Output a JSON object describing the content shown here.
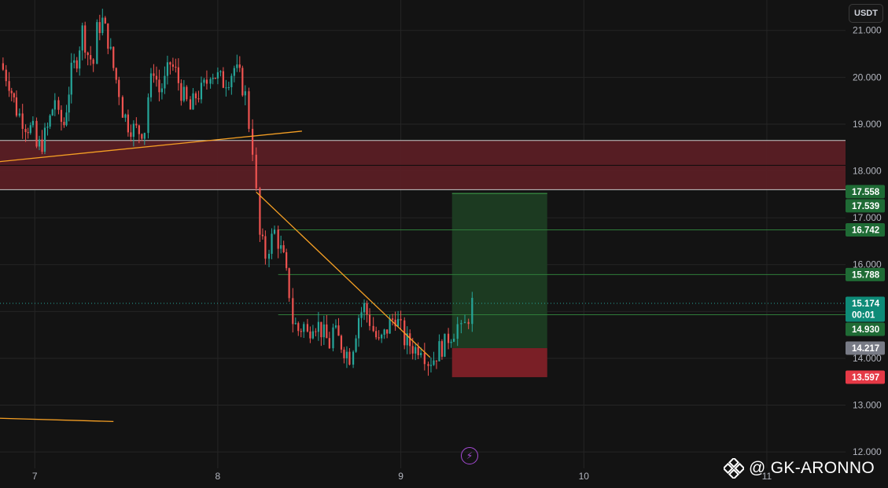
{
  "header": {
    "currency_label": "USDT"
  },
  "watermark": {
    "text": "@ GK-ARONNO",
    "logo_icon": "binance-diamond-icon"
  },
  "footer": {
    "lightning_icon": "lightning-bolt-icon"
  },
  "colors": {
    "background": "#131313",
    "grid": "#252525",
    "bull": "#26a69a",
    "bear": "#ef5350",
    "trendline": "#f59f24",
    "zone": "#5a1e24",
    "target_zone": "#1c3a21",
    "stop_zone": "#7a1f26",
    "target_line": "#3fa34d"
  },
  "chart_data": {
    "type": "candlestick",
    "y_axis": {
      "ylim": [
        11.65,
        21.65
      ],
      "ticks": [
        "12.000",
        "13.000",
        "14.000",
        "15.000",
        "16.000",
        "17.000",
        "18.000",
        "19.000",
        "20.000",
        "21.000"
      ],
      "tick_values": [
        12,
        13,
        14,
        15,
        16,
        17,
        18,
        19,
        20,
        21
      ]
    },
    "x_axis": {
      "xlim": [
        6.81,
        11.43
      ],
      "ticks": [
        "7",
        "8",
        "9",
        "10",
        "11"
      ],
      "tick_values": [
        7,
        8,
        9,
        10,
        11
      ]
    },
    "price_labels": [
      {
        "value": "17.558",
        "price": 17.558,
        "color": "#1f6b35"
      },
      {
        "value": "17.539",
        "price": 17.539,
        "color": "#1f6b35"
      },
      {
        "value": "16.742",
        "price": 16.742,
        "color": "#1f6b35"
      },
      {
        "value": "15.788",
        "price": 15.788,
        "color": "#1f6b35"
      },
      {
        "value": "15.174",
        "sub": "00:01",
        "price": 15.174,
        "color": "#0e8b78"
      },
      {
        "value": "14.930",
        "price": 14.93,
        "color": "#1f6b35"
      },
      {
        "value": "14.217",
        "price": 14.217,
        "color": "#787b86"
      },
      {
        "value": "13.597",
        "price": 13.597,
        "color": "#e53946"
      }
    ],
    "resistance_zone": {
      "top": 18.65,
      "mid": 18.12,
      "bottom": 17.6,
      "x_end": 11.43
    },
    "position": {
      "x_start": 9.28,
      "x_end": 9.8,
      "target": 17.52,
      "entry": 14.217,
      "stop": 13.597
    },
    "horizontal_lines": [
      {
        "price": 16.742,
        "x_start": 8.33,
        "color": "#2f7d3a"
      },
      {
        "price": 15.788,
        "x_start": 8.33,
        "color": "#2f7d3a"
      },
      {
        "price": 14.93,
        "x_start": 8.33,
        "color": "#2f7d3a"
      }
    ],
    "current_price_line": {
      "price": 15.174,
      "color": "#26a69a"
    },
    "trendlines": [
      {
        "x1": 6.81,
        "y1": 18.2,
        "x2": 8.46,
        "y2": 18.85
      },
      {
        "x1": 8.21,
        "y1": 17.55,
        "x2": 9.16,
        "y2": 14.02
      },
      {
        "x1": 6.81,
        "y1": 12.72,
        "x2": 7.43,
        "y2": 12.65
      }
    ],
    "candle_path": [
      [
        6.81,
        20.3
      ],
      [
        6.86,
        19.9
      ],
      [
        6.9,
        19.3
      ],
      [
        6.95,
        19.0
      ],
      [
        6.99,
        18.85
      ],
      [
        7.01,
        18.5
      ],
      [
        7.04,
        18.6
      ],
      [
        7.07,
        18.9
      ],
      [
        7.11,
        19.55
      ],
      [
        7.13,
        19.1
      ],
      [
        7.16,
        19.0
      ],
      [
        7.2,
        20.1
      ],
      [
        7.23,
        20.4
      ],
      [
        7.26,
        21.0
      ],
      [
        7.29,
        20.5
      ],
      [
        7.32,
        20.3
      ],
      [
        7.34,
        21.0
      ],
      [
        7.37,
        21.2
      ],
      [
        7.4,
        20.8
      ],
      [
        7.43,
        20.2
      ],
      [
        7.46,
        19.7
      ],
      [
        7.48,
        19.3
      ],
      [
        7.51,
        19.0
      ],
      [
        7.54,
        18.9
      ],
      [
        7.57,
        18.85
      ],
      [
        7.6,
        18.9
      ],
      [
        7.62,
        19.6
      ],
      [
        7.65,
        20.2
      ],
      [
        7.68,
        19.7
      ],
      [
        7.71,
        19.9
      ],
      [
        7.74,
        20.3
      ],
      [
        7.77,
        20.1
      ],
      [
        7.8,
        19.7
      ],
      [
        7.83,
        19.45
      ],
      [
        7.85,
        19.3
      ],
      [
        7.88,
        19.6
      ],
      [
        7.91,
        19.7
      ],
      [
        7.94,
        19.9
      ],
      [
        7.96,
        20.15
      ],
      [
        8.0,
        20.0
      ],
      [
        8.03,
        19.9
      ],
      [
        8.06,
        20.0
      ],
      [
        8.09,
        20.2
      ],
      [
        8.12,
        20.0
      ],
      [
        8.15,
        19.6
      ],
      [
        8.17,
        19.0
      ],
      [
        8.19,
        18.5
      ],
      [
        8.21,
        17.5
      ],
      [
        8.23,
        16.6
      ],
      [
        8.26,
        16.2
      ],
      [
        8.28,
        16.4
      ],
      [
        8.31,
        16.7
      ],
      [
        8.33,
        16.5
      ],
      [
        8.36,
        16.1
      ],
      [
        8.39,
        15.4
      ],
      [
        8.41,
        14.8
      ],
      [
        8.44,
        14.6
      ],
      [
        8.47,
        14.7
      ],
      [
        8.49,
        14.5
      ],
      [
        8.52,
        14.8
      ],
      [
        8.55,
        14.7
      ],
      [
        8.58,
        14.5
      ],
      [
        8.61,
        14.3
      ],
      [
        8.63,
        14.6
      ],
      [
        8.66,
        14.4
      ],
      [
        8.69,
        14.2
      ],
      [
        8.72,
        14.05
      ],
      [
        8.74,
        14.3
      ],
      [
        8.77,
        14.9
      ],
      [
        8.8,
        15.1
      ],
      [
        8.83,
        14.8
      ],
      [
        8.85,
        14.6
      ],
      [
        8.88,
        14.3
      ],
      [
        8.91,
        14.5
      ],
      [
        8.94,
        14.75
      ],
      [
        8.97,
        14.9
      ],
      [
        9.0,
        14.6
      ],
      [
        9.02,
        14.4
      ],
      [
        9.05,
        14.3
      ],
      [
        9.08,
        14.2
      ],
      [
        9.11,
        14.3
      ],
      [
        9.13,
        14.1
      ],
      [
        9.15,
        13.95
      ],
      [
        9.18,
        14.0
      ],
      [
        9.21,
        14.2
      ],
      [
        9.24,
        14.3
      ],
      [
        9.26,
        14.45
      ],
      [
        9.29,
        14.6
      ],
      [
        9.31,
        14.7
      ],
      [
        9.33,
        14.55
      ],
      [
        9.35,
        14.7
      ],
      [
        9.37,
        14.9
      ],
      [
        9.39,
        15.174
      ]
    ]
  }
}
